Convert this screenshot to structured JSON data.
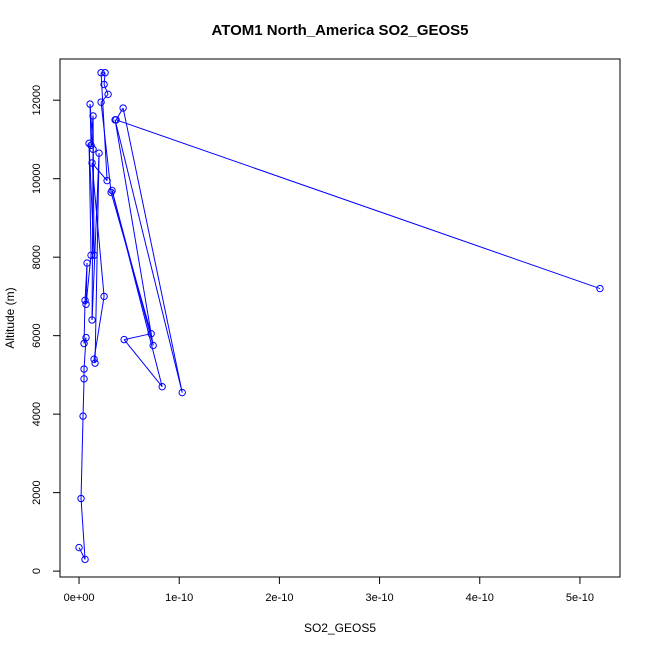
{
  "chart_data": {
    "type": "line",
    "title": "ATOM1 North_America SO2_GEOS5",
    "xlabel": "SO2_GEOS5",
    "ylabel": "Altitude (m)",
    "x_ticks": [
      0,
      1e-10,
      2e-10,
      3e-10,
      4e-10,
      5e-10
    ],
    "x_tick_labels": [
      "0e+00",
      "1e-10",
      "2e-10",
      "3e-10",
      "4e-10",
      "5e-10"
    ],
    "y_ticks": [
      0,
      2000,
      4000,
      6000,
      8000,
      10000,
      12000
    ],
    "y_tick_labels": [
      "0",
      "2000",
      "4000",
      "6000",
      "8000",
      "10000",
      "12000"
    ],
    "xlim": [
      -1.9e-11,
      5.4e-10
    ],
    "ylim": [
      -150,
      13050
    ],
    "series": [
      {
        "color": "#0000ff",
        "x": [
          0.0,
          6e-12,
          2e-12,
          4e-12,
          5e-12,
          5e-12,
          7e-12,
          5e-12,
          6e-12,
          8e-12,
          7e-12,
          1.2e-11,
          1e-11,
          1.5e-11,
          1.4e-11,
          1.2e-11,
          1.1e-11,
          1.4e-11,
          1.3e-11,
          2e-11,
          1.6e-11,
          1.5e-11,
          2.5e-11,
          1.3e-11,
          2.8e-11,
          2.2e-11,
          2.6e-11,
          2.5e-11,
          2.9e-11,
          2.2e-11,
          3.2e-11,
          7.2e-11,
          4.5e-11,
          8.3e-11,
          3.3e-11,
          7.4e-11,
          3.6e-11,
          1.03e-10,
          4.4e-11,
          3.7e-11,
          5.2e-10
        ],
        "y": [
          600,
          300,
          1850,
          3950,
          4900,
          5150,
          5950,
          5800,
          6900,
          7850,
          6800,
          8050,
          10900,
          8050,
          11600,
          10850,
          11900,
          10750,
          6400,
          10650,
          5300,
          5400,
          7000,
          10400,
          9950,
          12700,
          12700,
          12400,
          12150,
          11950,
          9650,
          6050,
          5900,
          4700,
          9700,
          5750,
          11500,
          4550,
          11800,
          11500,
          7200
        ]
      }
    ]
  }
}
